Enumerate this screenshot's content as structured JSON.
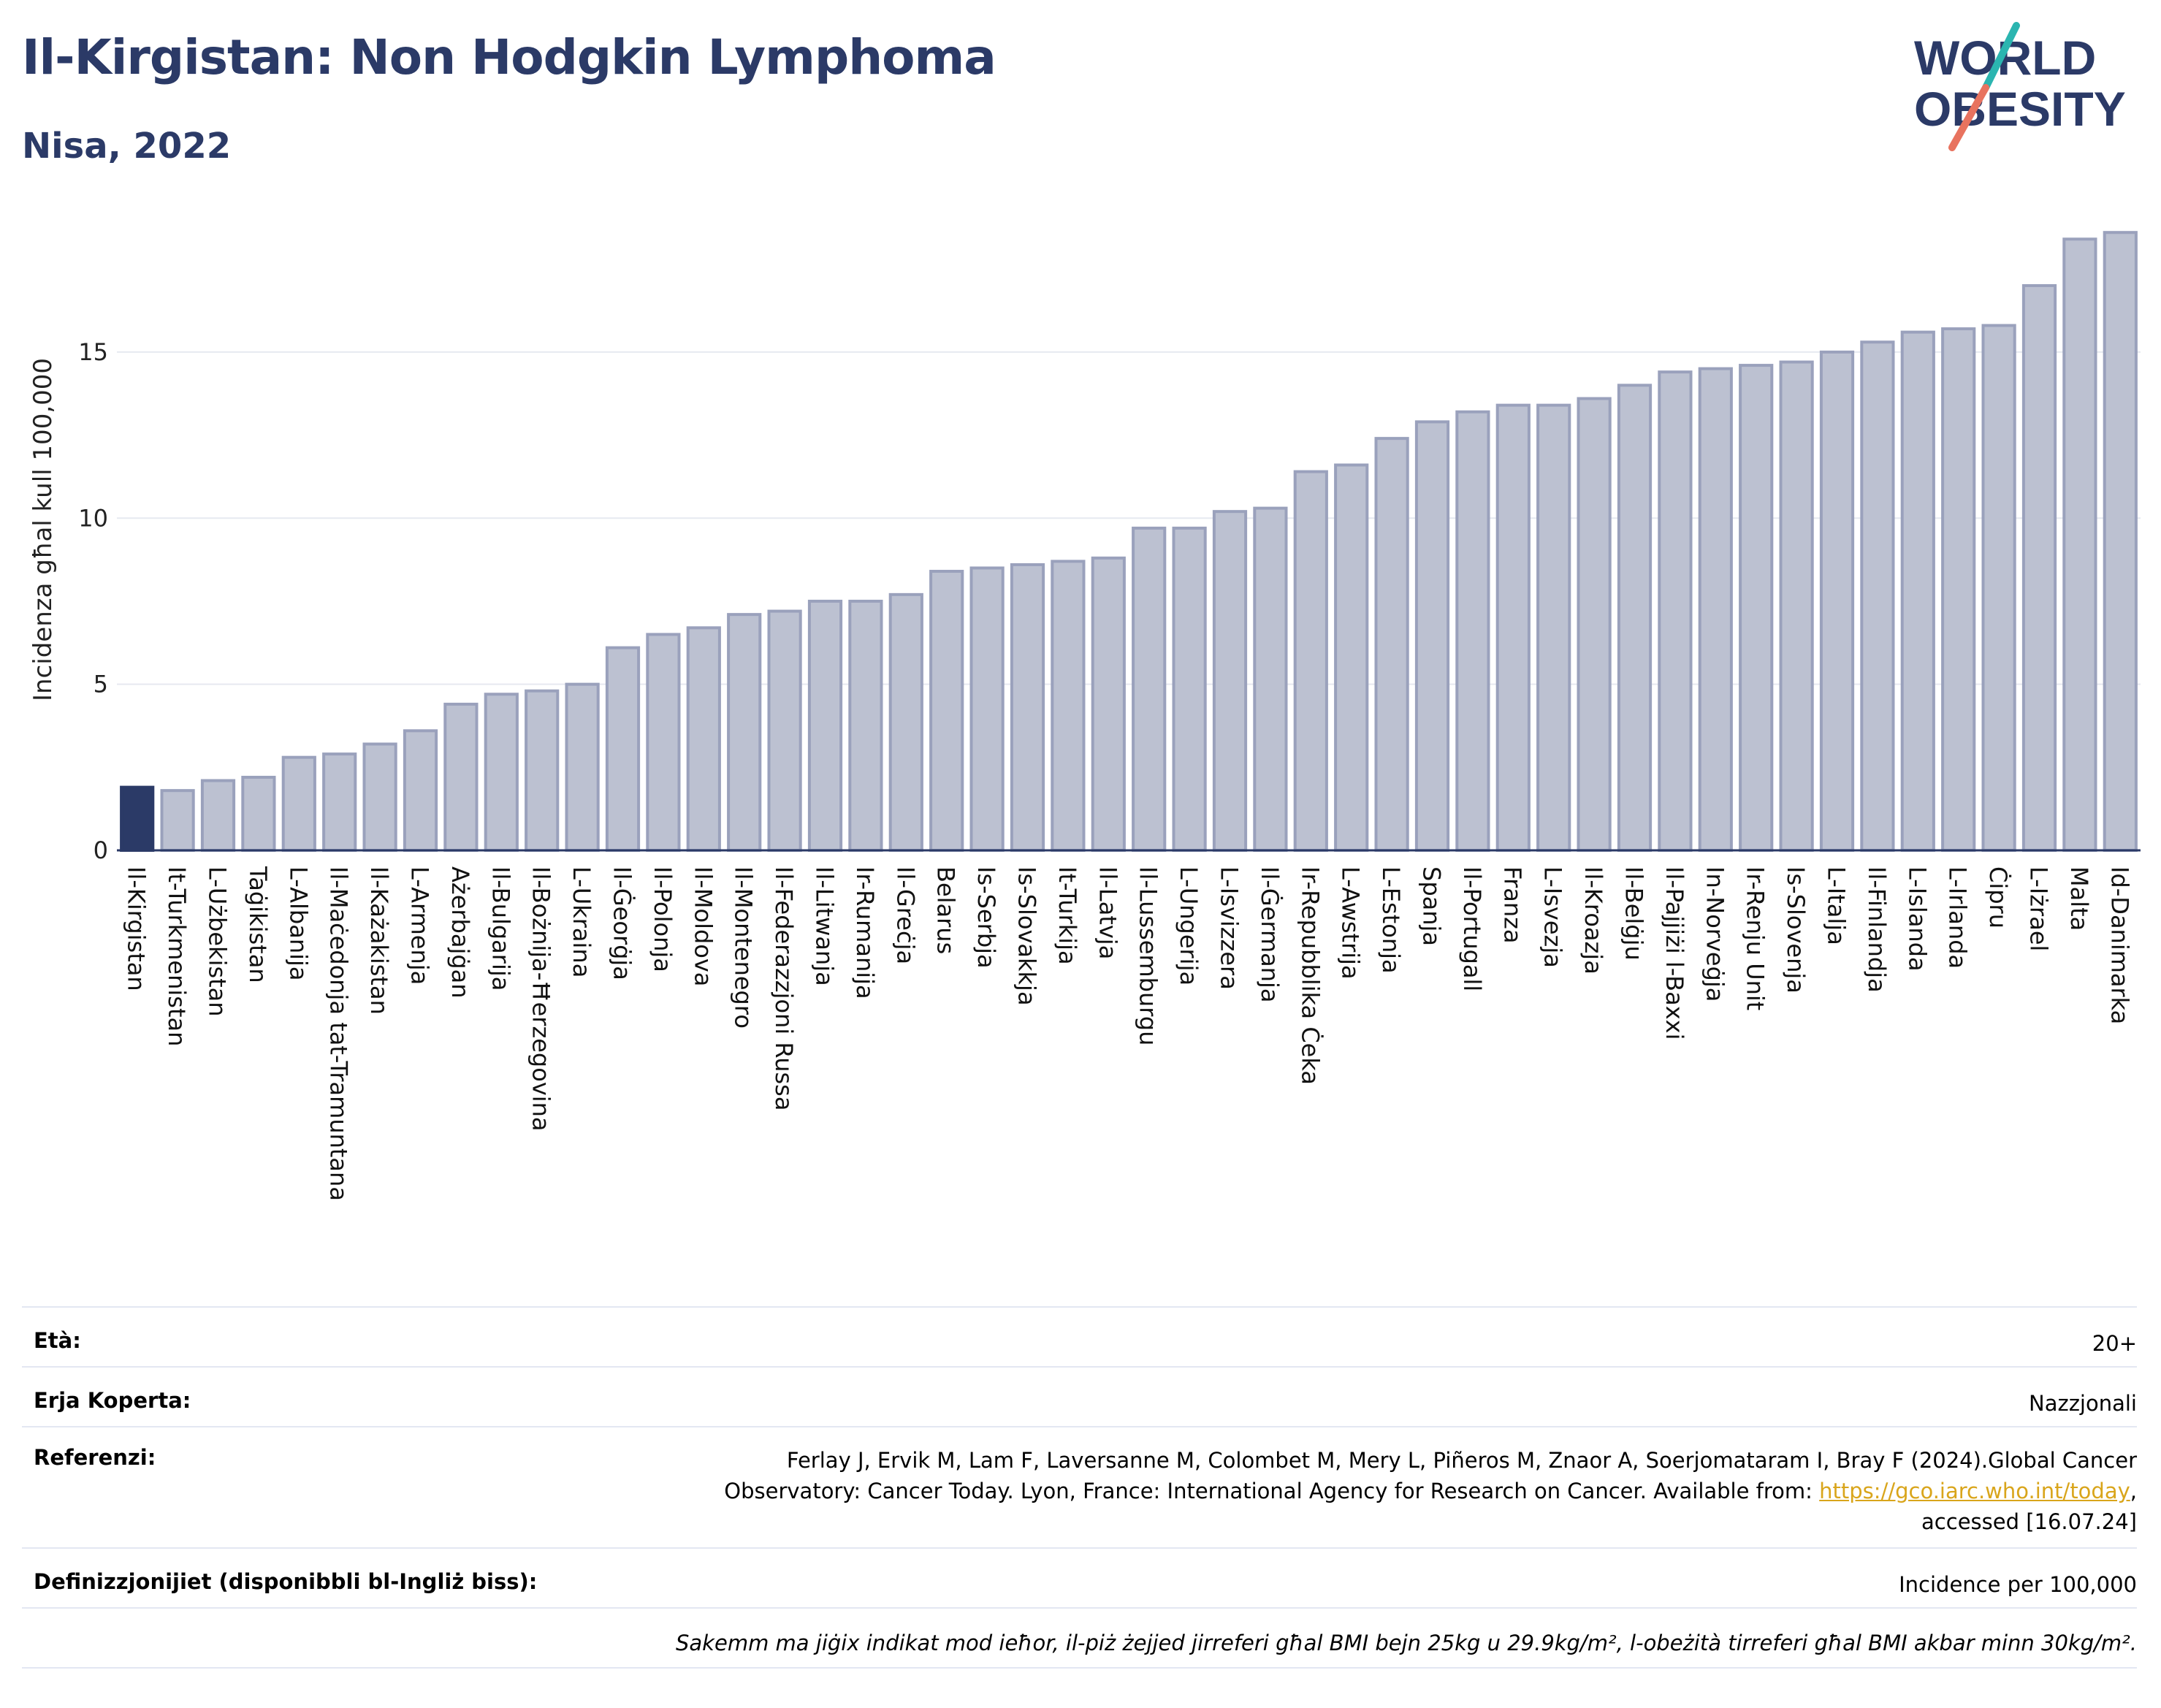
{
  "header": {
    "title": "Il-Kirgistan: Non Hodgkin Lymphoma",
    "subtitle": "Nisa, 2022"
  },
  "logo": {
    "line1": "WORLD",
    "line2": "OBESITY",
    "colors": {
      "text": "#2b3a67",
      "teal": "#2bb5b0",
      "coral": "#e8735f"
    }
  },
  "colors": {
    "highlight_bar": "#2b3a67",
    "bar_fill": "#bcc1d1",
    "bar_stroke": "#9aa1bc",
    "grid": "#e6e9f0",
    "baseline": "#2b3a67"
  },
  "chart_data": {
    "type": "bar",
    "title": "Il-Kirgistan: Non Hodgkin Lymphoma",
    "subtitle": "Nisa, 2022",
    "ylabel": "Incidenza għal kull 100,000",
    "ylim": [
      0,
      19
    ],
    "yticks": [
      0,
      5,
      10,
      15
    ],
    "grid": true,
    "highlight": "Il-Kirgistan",
    "categories": [
      "Il-Kirgistan",
      "It-Turkmenistan",
      "L-Użbekistan",
      "Taġikistan",
      "L-Albanija",
      "Il-Maċedonja tat-Tramuntana",
      "Il-Każakistan",
      "L-Armenja",
      "Ażerbajġan",
      "Il-Bulgarija",
      "Il-Bożnija-Ħerzegovina",
      "L-Ukraina",
      "Il-Ġeorġja",
      "Il-Polonja",
      "Il-Moldova",
      "Il-Montenegro",
      "Il-Federazzjoni Russa",
      "Il-Litwanja",
      "Ir-Rumanija",
      "Il-Greċja",
      "Belarus",
      "Is-Serbja",
      "Is-Slovakkja",
      "It-Turkija",
      "Il-Latvja",
      "Il-Lussemburgu",
      "L-Ungerija",
      "L-Isvizzera",
      "Il-Ġermanja",
      "Ir-Repubblika Ċeka",
      "L-Awstrija",
      "L-Estonja",
      "Spanja",
      "Il-Portugall",
      "Franza",
      "L-Isvezja",
      "Il-Kroazja",
      "Il-Belġju",
      "Il-Pajjiżi l-Baxxi",
      "In-Norveġja",
      "Ir-Renju Unit",
      "Is-Slovenja",
      "L-Italja",
      "Il-Finlandja",
      "L-Islanda",
      "L-Irlanda",
      "Ċipru",
      "L-Iżrael",
      "Malta",
      "Id-Danimarka"
    ],
    "values": [
      1.9,
      1.8,
      2.1,
      2.2,
      2.8,
      2.9,
      3.2,
      3.6,
      4.4,
      4.7,
      4.8,
      5.0,
      6.1,
      6.5,
      6.7,
      7.1,
      7.2,
      7.5,
      7.5,
      7.7,
      8.4,
      8.5,
      8.6,
      8.7,
      8.8,
      9.7,
      9.7,
      10.2,
      10.3,
      11.4,
      11.6,
      12.4,
      12.9,
      13.2,
      13.4,
      13.4,
      13.6,
      14.0,
      14.4,
      14.5,
      14.6,
      14.7,
      15.0,
      15.3,
      15.6,
      15.7,
      15.8,
      17.0,
      18.4,
      18.6
    ]
  },
  "info": {
    "age_label": "Età:",
    "age_value": "20+",
    "area_label": "Erja Koperta:",
    "area_value": "Nazzjonali",
    "ref_label": "Referenzi:",
    "ref_line1": "Ferlay J, Ervik M, Lam F, Laversanne M, Colombet M, Mery L, Piñeros M, Znaor A, Soerjomataram I, Bray F (2024).Global Cancer",
    "ref_line2_prefix": "Observatory: Cancer Today. Lyon, France: International Agency for Research on Cancer. Available from: ",
    "ref_link": "https://gco.iarc.who.int/today",
    "ref_line2_suffix": ",",
    "ref_line3": "accessed [16.07.24]",
    "def_label": "Definizzjonijiet (disponibbli bl-Ingliż biss):",
    "def_value": "Incidence per 100,000",
    "note": "Sakemm ma jiġix indikat mod ieħor, il-piż żejjed jirreferi għal BMI bejn 25kg u 29.9kg/m², l-obeżità tirreferi għal BMI akbar minn 30kg/m²."
  }
}
